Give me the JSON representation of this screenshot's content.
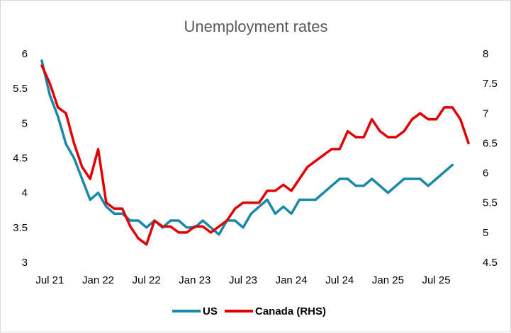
{
  "chart_data": {
    "type": "line",
    "title": "Unemployment rates",
    "xlabel": "",
    "ylabel": "",
    "x_tick_labels": [
      "Jul 21",
      "Jan 22",
      "Jul 22",
      "Jan 23",
      "Jul 23",
      "Jan 24",
      "Jul 24",
      "Jan 25",
      "Jul 25"
    ],
    "x_start": "Jun 21",
    "x_end": "Nov 25",
    "y_left": {
      "ticks": [
        "3",
        "3.5",
        "4",
        "4.5",
        "5",
        "5.5",
        "6"
      ],
      "lim": [
        3,
        6
      ]
    },
    "y_right": {
      "ticks": [
        "4.5",
        "5",
        "5.5",
        "6",
        "6.5",
        "7",
        "7.5",
        "8"
      ],
      "lim": [
        4.5,
        8
      ]
    },
    "grid": false,
    "legend_position": "bottom",
    "series": [
      {
        "name": "US",
        "axis": "left",
        "color": "#1a88a8",
        "values": [
          5.9,
          5.4,
          5.1,
          4.7,
          4.5,
          4.2,
          3.9,
          4.0,
          3.8,
          3.7,
          3.7,
          3.6,
          3.6,
          3.5,
          3.6,
          3.5,
          3.6,
          3.6,
          3.5,
          3.5,
          3.6,
          3.5,
          3.4,
          3.6,
          3.6,
          3.5,
          3.7,
          3.8,
          3.9,
          3.7,
          3.8,
          3.7,
          3.9,
          3.9,
          3.9,
          4.0,
          4.1,
          4.2,
          4.2,
          4.1,
          4.1,
          4.2,
          4.1,
          4.0,
          4.1,
          4.2,
          4.2,
          4.2,
          4.1,
          4.2,
          4.3,
          4.4
        ]
      },
      {
        "name": "Canada (RHS)",
        "axis": "right",
        "color": "#e00000",
        "values": [
          7.8,
          7.5,
          7.1,
          7.0,
          6.5,
          6.1,
          5.9,
          6.4,
          5.5,
          5.4,
          5.4,
          5.1,
          4.9,
          4.8,
          5.2,
          5.1,
          5.1,
          5.0,
          5.0,
          5.1,
          5.1,
          5.0,
          5.1,
          5.2,
          5.4,
          5.5,
          5.5,
          5.5,
          5.7,
          5.7,
          5.8,
          5.7,
          5.9,
          6.1,
          6.2,
          6.3,
          6.4,
          6.4,
          6.7,
          6.6,
          6.6,
          6.9,
          6.7,
          6.6,
          6.6,
          6.7,
          6.9,
          7.0,
          6.9,
          6.9,
          7.1,
          7.1,
          6.9,
          6.5
        ]
      }
    ]
  }
}
